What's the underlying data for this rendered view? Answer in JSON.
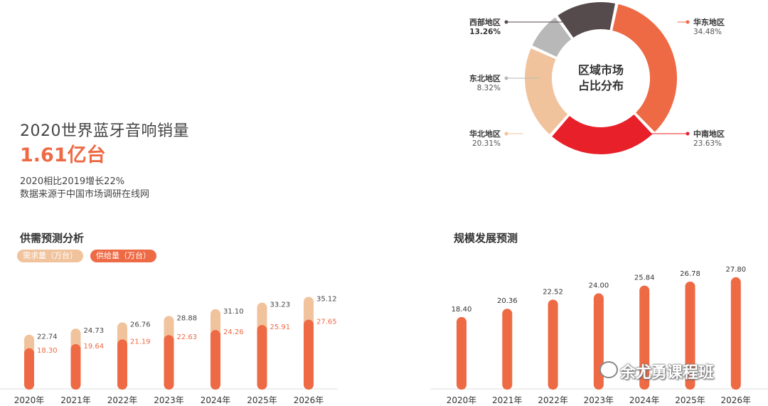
{
  "header": {
    "title": "2020世界蓝牙音响销量",
    "value": "1.61亿台",
    "growth": "2020相比2019增长22%",
    "source": "数据来源于中国市场调研在线网"
  },
  "watermark": "余尤勇课程班",
  "colors": {
    "accent": "#ee6a45",
    "demand": "#f0c39c",
    "supply": "#ee6a45",
    "east": "#ee6a45",
    "south": "#e8202a",
    "north": "#f0c39c",
    "northeast": "#b8b8b8",
    "west": "#564b4c"
  },
  "chart_data": [
    {
      "type": "pie",
      "title": "区域市场占比分布",
      "title_lines": [
        "区域市场",
        "占比分布"
      ],
      "slices": [
        {
          "label": "华东地区",
          "value": 34.48,
          "value_text": "34.48%",
          "color": "#ee6a45"
        },
        {
          "label": "中南地区",
          "value": 23.63,
          "value_text": "23.63%",
          "color": "#e8202a"
        },
        {
          "label": "华北地区",
          "value": 20.31,
          "value_text": "20.31%",
          "color": "#f0c39c"
        },
        {
          "label": "东北地区",
          "value": 8.32,
          "value_text": "8.32%",
          "color": "#b8b8b8"
        },
        {
          "label": "西部地区",
          "value": 13.26,
          "value_text": "13.26%",
          "color": "#564b4c"
        }
      ]
    },
    {
      "type": "bar",
      "title": "供需预测分析",
      "categories": [
        "2020年",
        "2021年",
        "2022年",
        "2023年",
        "2024年",
        "2025年",
        "2026年"
      ],
      "series": [
        {
          "name": "需求量（万台）",
          "values": [
            22.74,
            24.73,
            26.76,
            28.88,
            31.1,
            33.23,
            35.12
          ],
          "labels": [
            "22.74",
            "24.73",
            "26.76",
            "28.88",
            "31.10",
            "33.23",
            "35.12"
          ]
        },
        {
          "name": "供给量（万台）",
          "values": [
            18.3,
            19.64,
            21.19,
            22.63,
            24.26,
            25.91,
            27.65
          ],
          "labels": [
            "18.30",
            "19.64",
            "21.19",
            "22.63",
            "24.26",
            "25.91",
            "27.65"
          ]
        }
      ],
      "legend": "top-left"
    },
    {
      "type": "bar",
      "title": "规模发展预测",
      "categories": [
        "2020年",
        "2021年",
        "2022年",
        "2023年",
        "2024年",
        "2025年",
        "2026年"
      ],
      "values": [
        18.4,
        20.36,
        22.52,
        24.0,
        25.84,
        26.78,
        27.8
      ],
      "labels": [
        "18.40",
        "20.36",
        "22.52",
        "24.00",
        "25.84",
        "26.78",
        "27.80"
      ]
    }
  ]
}
